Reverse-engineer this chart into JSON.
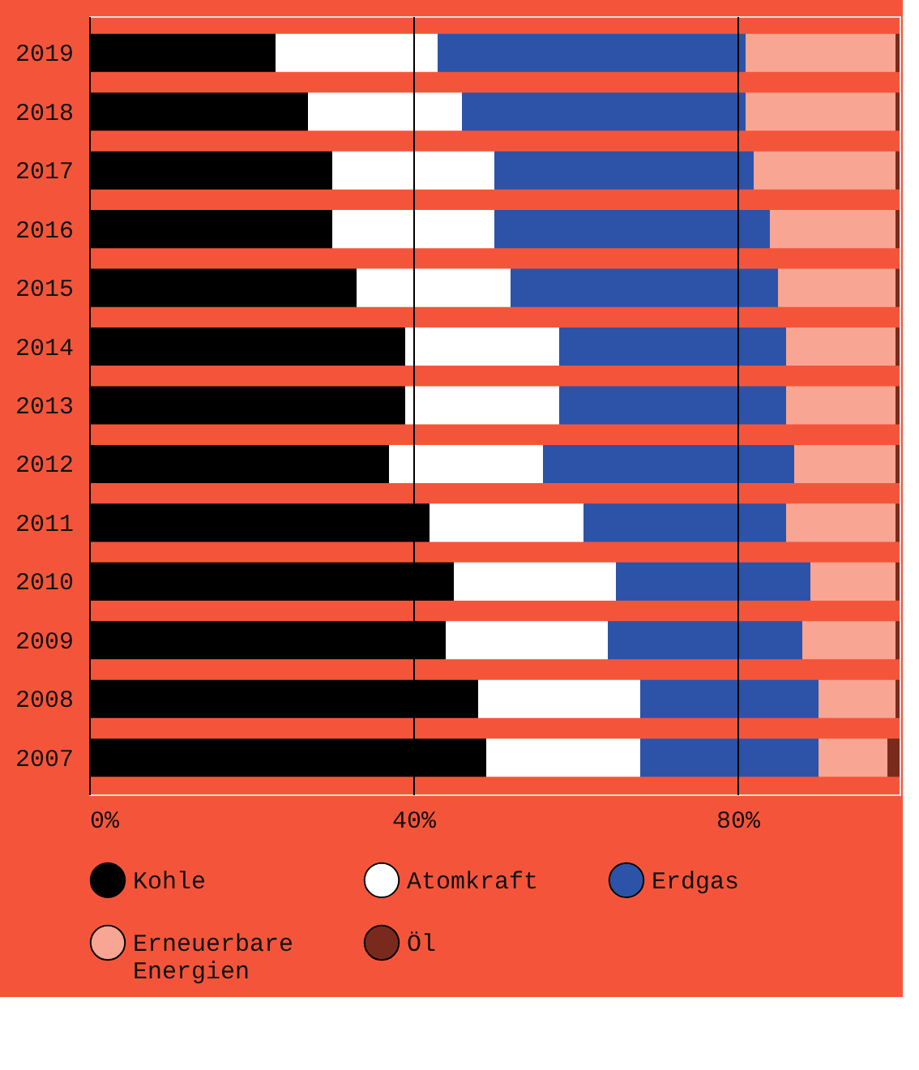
{
  "chart_data": {
    "type": "bar",
    "orientation": "horizontal",
    "stacked": true,
    "categories": [
      "2019",
      "2018",
      "2017",
      "2016",
      "2015",
      "2014",
      "2013",
      "2012",
      "2011",
      "2010",
      "2009",
      "2008",
      "2007"
    ],
    "series": [
      {
        "name": "Kohle",
        "color": "#000000",
        "values": [
          23,
          27,
          30,
          30,
          33,
          39,
          39,
          37,
          42,
          45,
          44,
          48,
          49
        ]
      },
      {
        "name": "Atomkraft",
        "color": "#ffffff",
        "values": [
          20,
          19,
          20,
          20,
          19,
          19,
          19,
          19,
          19,
          20,
          20,
          20,
          19
        ]
      },
      {
        "name": "Erdgas",
        "color": "#2c53a8",
        "values": [
          38,
          35,
          32,
          34,
          33,
          28,
          28,
          31,
          25,
          24,
          24,
          22,
          22
        ]
      },
      {
        "name": "Erneuerbare Energien",
        "color": "#f9a593",
        "values": [
          18.5,
          18.5,
          17.5,
          15.5,
          14.5,
          13.5,
          13.5,
          12.5,
          13.5,
          10.5,
          11.5,
          9.5,
          8.5
        ]
      },
      {
        "name": "Öl",
        "color": "#7a2a1d",
        "values": [
          0.5,
          0.5,
          0.5,
          0.5,
          0.5,
          0.5,
          0.5,
          0.5,
          0.5,
          0.5,
          0.5,
          0.5,
          1.5
        ]
      }
    ],
    "xlim": [
      0,
      100
    ],
    "xticks": [
      {
        "value": 0,
        "label": "0%"
      },
      {
        "value": 40,
        "label": "40%"
      },
      {
        "value": 80,
        "label": "80%"
      }
    ],
    "grid": "x",
    "legend": "bottom"
  }
}
